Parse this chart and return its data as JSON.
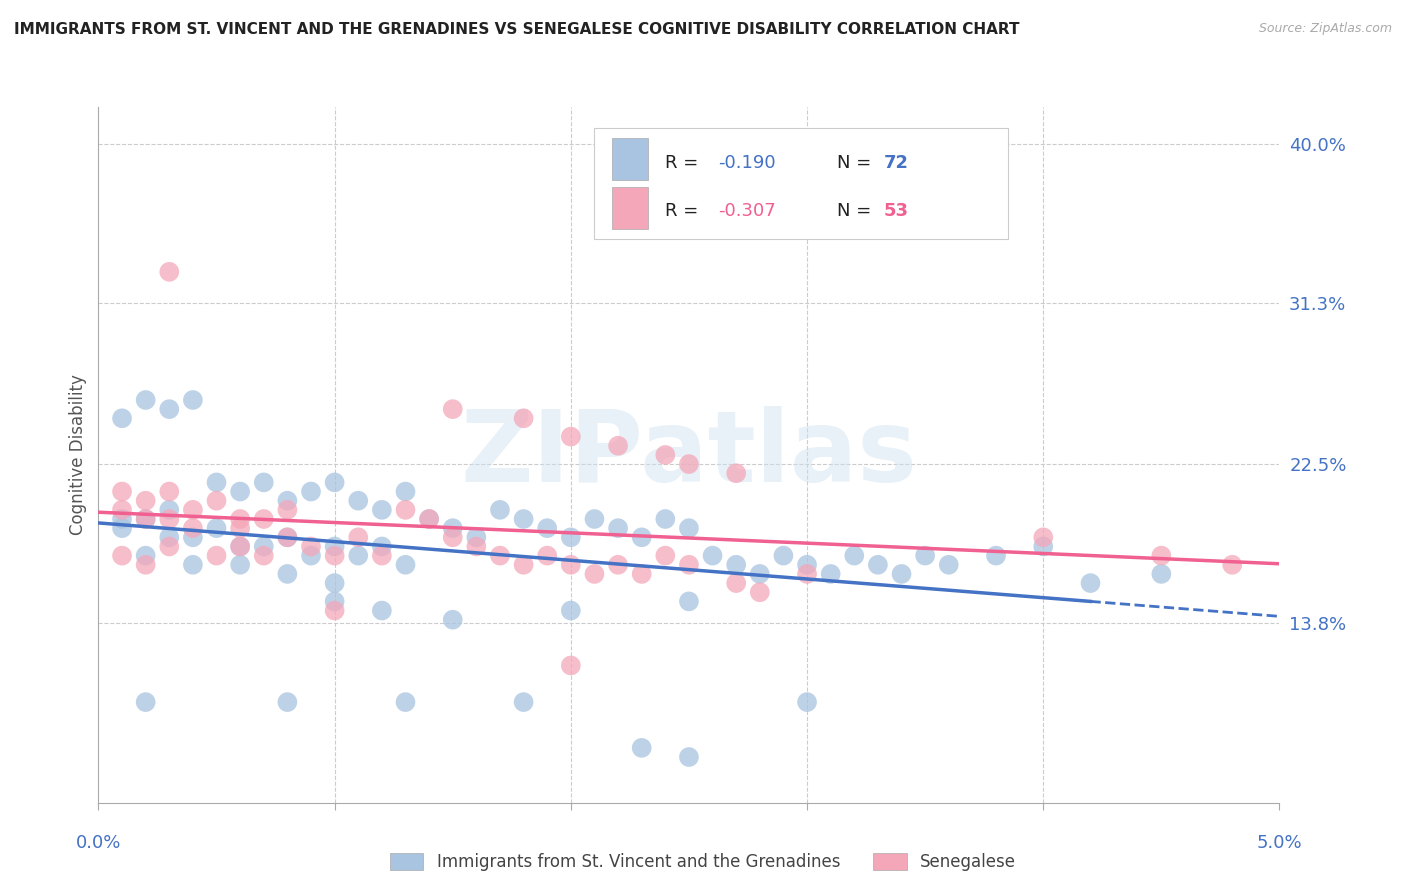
{
  "title": "IMMIGRANTS FROM ST. VINCENT AND THE GRENADINES VS SENEGALESE COGNITIVE DISABILITY CORRELATION CHART",
  "source": "Source: ZipAtlas.com",
  "ylabel": "Cognitive Disability",
  "yticks": [
    0.138,
    0.225,
    0.313,
    0.4
  ],
  "ytick_labels": [
    "13.8%",
    "22.5%",
    "31.3%",
    "40.0%"
  ],
  "xlim": [
    0.0,
    0.05
  ],
  "ylim": [
    0.04,
    0.42
  ],
  "watermark": "ZIPatlas",
  "legend_r1_val": "-0.190",
  "legend_n1_val": "72",
  "legend_r2_val": "-0.307",
  "legend_n2_val": "53",
  "label1": "Immigrants from St. Vincent and the Grenadines",
  "label2": "Senegalese",
  "color1": "#a8c4e0",
  "color2": "#f4a7b9",
  "line_color1": "#4472c4",
  "line_color2": "#f06090",
  "title_color": "#222222",
  "axis_label_color": "#4472c4",
  "blue_scatter": [
    [
      0.001,
      0.195
    ],
    [
      0.002,
      0.195
    ],
    [
      0.003,
      0.2
    ],
    [
      0.001,
      0.19
    ],
    [
      0.004,
      0.185
    ],
    [
      0.002,
      0.175
    ],
    [
      0.003,
      0.185
    ],
    [
      0.005,
      0.19
    ],
    [
      0.006,
      0.18
    ],
    [
      0.004,
      0.17
    ],
    [
      0.007,
      0.18
    ],
    [
      0.008,
      0.185
    ],
    [
      0.006,
      0.17
    ],
    [
      0.009,
      0.175
    ],
    [
      0.01,
      0.18
    ],
    [
      0.008,
      0.165
    ],
    [
      0.011,
      0.175
    ],
    [
      0.012,
      0.18
    ],
    [
      0.01,
      0.16
    ],
    [
      0.013,
      0.17
    ],
    [
      0.002,
      0.26
    ],
    [
      0.003,
      0.255
    ],
    [
      0.001,
      0.25
    ],
    [
      0.004,
      0.26
    ],
    [
      0.005,
      0.215
    ],
    [
      0.006,
      0.21
    ],
    [
      0.007,
      0.215
    ],
    [
      0.008,
      0.205
    ],
    [
      0.009,
      0.21
    ],
    [
      0.01,
      0.215
    ],
    [
      0.011,
      0.205
    ],
    [
      0.012,
      0.2
    ],
    [
      0.013,
      0.21
    ],
    [
      0.014,
      0.195
    ],
    [
      0.015,
      0.19
    ],
    [
      0.016,
      0.185
    ],
    [
      0.017,
      0.2
    ],
    [
      0.018,
      0.195
    ],
    [
      0.019,
      0.19
    ],
    [
      0.02,
      0.185
    ],
    [
      0.021,
      0.195
    ],
    [
      0.022,
      0.19
    ],
    [
      0.023,
      0.185
    ],
    [
      0.024,
      0.195
    ],
    [
      0.025,
      0.19
    ],
    [
      0.026,
      0.175
    ],
    [
      0.027,
      0.17
    ],
    [
      0.028,
      0.165
    ],
    [
      0.029,
      0.175
    ],
    [
      0.03,
      0.17
    ],
    [
      0.031,
      0.165
    ],
    [
      0.032,
      0.175
    ],
    [
      0.033,
      0.17
    ],
    [
      0.034,
      0.165
    ],
    [
      0.035,
      0.175
    ],
    [
      0.036,
      0.17
    ],
    [
      0.038,
      0.175
    ],
    [
      0.04,
      0.18
    ],
    [
      0.042,
      0.16
    ],
    [
      0.045,
      0.165
    ],
    [
      0.01,
      0.15
    ],
    [
      0.012,
      0.145
    ],
    [
      0.015,
      0.14
    ],
    [
      0.02,
      0.145
    ],
    [
      0.025,
      0.15
    ],
    [
      0.002,
      0.095
    ],
    [
      0.008,
      0.095
    ],
    [
      0.013,
      0.095
    ],
    [
      0.018,
      0.095
    ],
    [
      0.025,
      0.065
    ],
    [
      0.03,
      0.095
    ],
    [
      0.023,
      0.07
    ]
  ],
  "pink_scatter": [
    [
      0.001,
      0.2
    ],
    [
      0.002,
      0.205
    ],
    [
      0.003,
      0.195
    ],
    [
      0.001,
      0.21
    ],
    [
      0.004,
      0.2
    ],
    [
      0.002,
      0.195
    ],
    [
      0.003,
      0.21
    ],
    [
      0.005,
      0.205
    ],
    [
      0.006,
      0.195
    ],
    [
      0.004,
      0.19
    ],
    [
      0.007,
      0.195
    ],
    [
      0.008,
      0.2
    ],
    [
      0.006,
      0.19
    ],
    [
      0.001,
      0.175
    ],
    [
      0.002,
      0.17
    ],
    [
      0.003,
      0.18
    ],
    [
      0.005,
      0.175
    ],
    [
      0.006,
      0.18
    ],
    [
      0.007,
      0.175
    ],
    [
      0.008,
      0.185
    ],
    [
      0.009,
      0.18
    ],
    [
      0.01,
      0.175
    ],
    [
      0.011,
      0.185
    ],
    [
      0.012,
      0.175
    ],
    [
      0.003,
      0.33
    ],
    [
      0.015,
      0.255
    ],
    [
      0.018,
      0.25
    ],
    [
      0.02,
      0.24
    ],
    [
      0.022,
      0.235
    ],
    [
      0.024,
      0.23
    ],
    [
      0.025,
      0.225
    ],
    [
      0.027,
      0.22
    ],
    [
      0.013,
      0.2
    ],
    [
      0.014,
      0.195
    ],
    [
      0.015,
      0.185
    ],
    [
      0.016,
      0.18
    ],
    [
      0.017,
      0.175
    ],
    [
      0.018,
      0.17
    ],
    [
      0.019,
      0.175
    ],
    [
      0.02,
      0.17
    ],
    [
      0.021,
      0.165
    ],
    [
      0.022,
      0.17
    ],
    [
      0.023,
      0.165
    ],
    [
      0.024,
      0.175
    ],
    [
      0.025,
      0.17
    ],
    [
      0.027,
      0.16
    ],
    [
      0.028,
      0.155
    ],
    [
      0.03,
      0.165
    ],
    [
      0.04,
      0.185
    ],
    [
      0.045,
      0.175
    ],
    [
      0.048,
      0.17
    ],
    [
      0.01,
      0.145
    ],
    [
      0.02,
      0.115
    ]
  ],
  "grid_color": "#cccccc",
  "bg_color": "#ffffff"
}
